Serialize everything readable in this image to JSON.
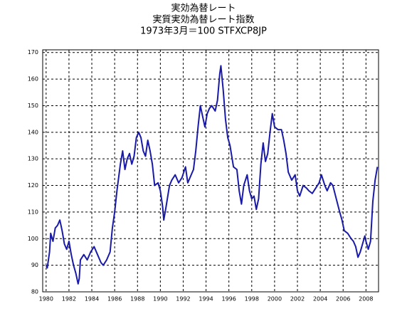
{
  "chart_data": {
    "type": "line",
    "title": [
      "実効為替レート",
      "実質実効為替レート指数",
      "1973年3月＝100 STFXCP8JP"
    ],
    "x": [
      1980.0,
      1980.1,
      1980.3,
      1980.4,
      1980.6,
      1980.8,
      1981.0,
      1981.2,
      1981.4,
      1981.6,
      1981.8,
      1982.0,
      1982.2,
      1982.4,
      1982.6,
      1982.8,
      1982.9,
      1983.0,
      1983.3,
      1983.6,
      1983.9,
      1984.2,
      1984.5,
      1984.8,
      1985.0,
      1985.3,
      1985.6,
      1985.8,
      1986.0,
      1986.2,
      1986.5,
      1986.7,
      1986.9,
      1987.1,
      1987.3,
      1987.5,
      1987.7,
      1987.9,
      1988.1,
      1988.3,
      1988.5,
      1988.7,
      1988.9,
      1989.1,
      1989.3,
      1989.5,
      1989.8,
      1990.0,
      1990.2,
      1990.3,
      1990.5,
      1990.8,
      1991.0,
      1991.3,
      1991.6,
      1991.9,
      1992.2,
      1992.4,
      1992.7,
      1992.9,
      1993.1,
      1993.3,
      1993.5,
      1993.7,
      1993.9,
      1994.1,
      1994.3,
      1994.5,
      1994.8,
      1995.0,
      1995.2,
      1995.3,
      1995.5,
      1995.7,
      1995.9,
      1996.1,
      1996.4,
      1996.7,
      1996.9,
      1997.1,
      1997.3,
      1997.6,
      1997.8,
      1998.0,
      1998.2,
      1998.4,
      1998.6,
      1998.8,
      1999.0,
      1999.2,
      1999.4,
      1999.6,
      1999.8,
      2000.0,
      2000.3,
      2000.6,
      2000.8,
      2001.0,
      2001.2,
      2001.5,
      2001.8,
      2002.0,
      2002.2,
      2002.5,
      2002.8,
      2003.0,
      2003.3,
      2003.6,
      2003.9,
      2004.1,
      2004.4,
      2004.6,
      2004.9,
      2005.1,
      2005.4,
      2005.7,
      2005.9,
      2006.1,
      2006.4,
      2006.7,
      2006.9,
      2007.1,
      2007.3,
      2007.5,
      2007.7,
      2007.9,
      2008.0,
      2008.2,
      2008.4,
      2008.6,
      2008.8,
      2009.0
    ],
    "series": [
      {
        "color": "#1a1aa8",
        "values": [
          90,
          89,
          95,
          102,
          99,
          104,
          105,
          107,
          103,
          98,
          96,
          99,
          94,
          90,
          87,
          83,
          85,
          92,
          94,
          92,
          95,
          97,
          94,
          91,
          90,
          92,
          95,
          104,
          110,
          118,
          128,
          133,
          126,
          130,
          132,
          128,
          131,
          138,
          140,
          138,
          133,
          131,
          137,
          133,
          128,
          120,
          121,
          118,
          112,
          107,
          112,
          120,
          122,
          124,
          121,
          123,
          127,
          121,
          124,
          126,
          133,
          142,
          150,
          146,
          142,
          147,
          149,
          150,
          148,
          152,
          162,
          165,
          156,
          145,
          138,
          135,
          127,
          126,
          118,
          113,
          120,
          124,
          118,
          115,
          116,
          111,
          115,
          128,
          136,
          129,
          132,
          140,
          147,
          142,
          141,
          141,
          137,
          132,
          125,
          122,
          124,
          118,
          116,
          120,
          119,
          118,
          117,
          119,
          121,
          124,
          120,
          118,
          121,
          120,
          115,
          110,
          107,
          103,
          102,
          100,
          99,
          97,
          93,
          95,
          98,
          101,
          99,
          96,
          99,
          114,
          122,
          127
        ]
      }
    ],
    "xlim": [
      1979.7,
      2009.1
    ],
    "xticks": [
      1980,
      1982,
      1984,
      1986,
      1988,
      1990,
      1992,
      1994,
      1996,
      1998,
      2000,
      2002,
      2004,
      2006,
      2008
    ],
    "ylim": [
      80,
      171
    ],
    "yticks": [
      80,
      90,
      100,
      110,
      120,
      130,
      140,
      150,
      160,
      170
    ],
    "grid": true
  }
}
